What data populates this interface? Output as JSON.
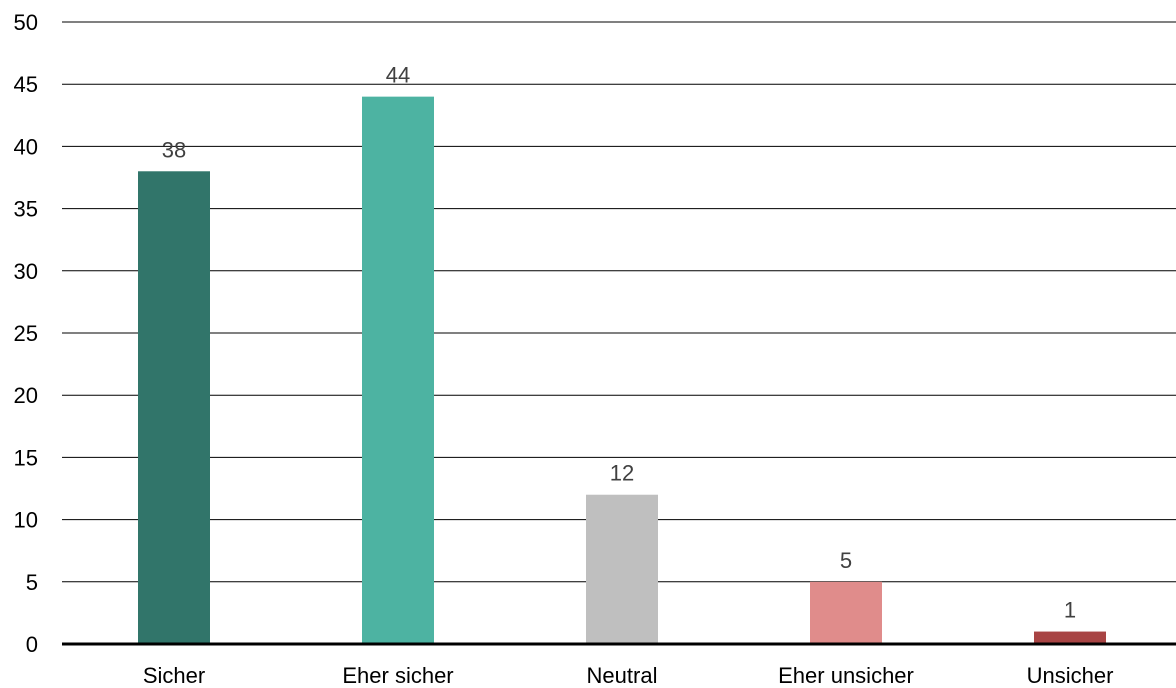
{
  "chart_data": {
    "type": "bar",
    "categories": [
      "Sicher",
      "Eher sicher",
      "Neutral",
      "Eher unsicher",
      "Unsicher"
    ],
    "values": [
      38,
      44,
      12,
      5,
      1
    ],
    "value_labels": [
      "38",
      "44",
      "12",
      "5",
      "1"
    ],
    "colors": [
      "#31756a",
      "#4db3a2",
      "#bfbfbf",
      "#e08c8b",
      "#a84444"
    ],
    "ylim": [
      0,
      50
    ],
    "yticks": [
      0,
      5,
      10,
      15,
      20,
      25,
      30,
      35,
      40,
      45,
      50
    ],
    "grid": true,
    "gridline_color": "#000000",
    "axis_color": "#000000",
    "title": "",
    "xlabel": "",
    "ylabel": ""
  }
}
